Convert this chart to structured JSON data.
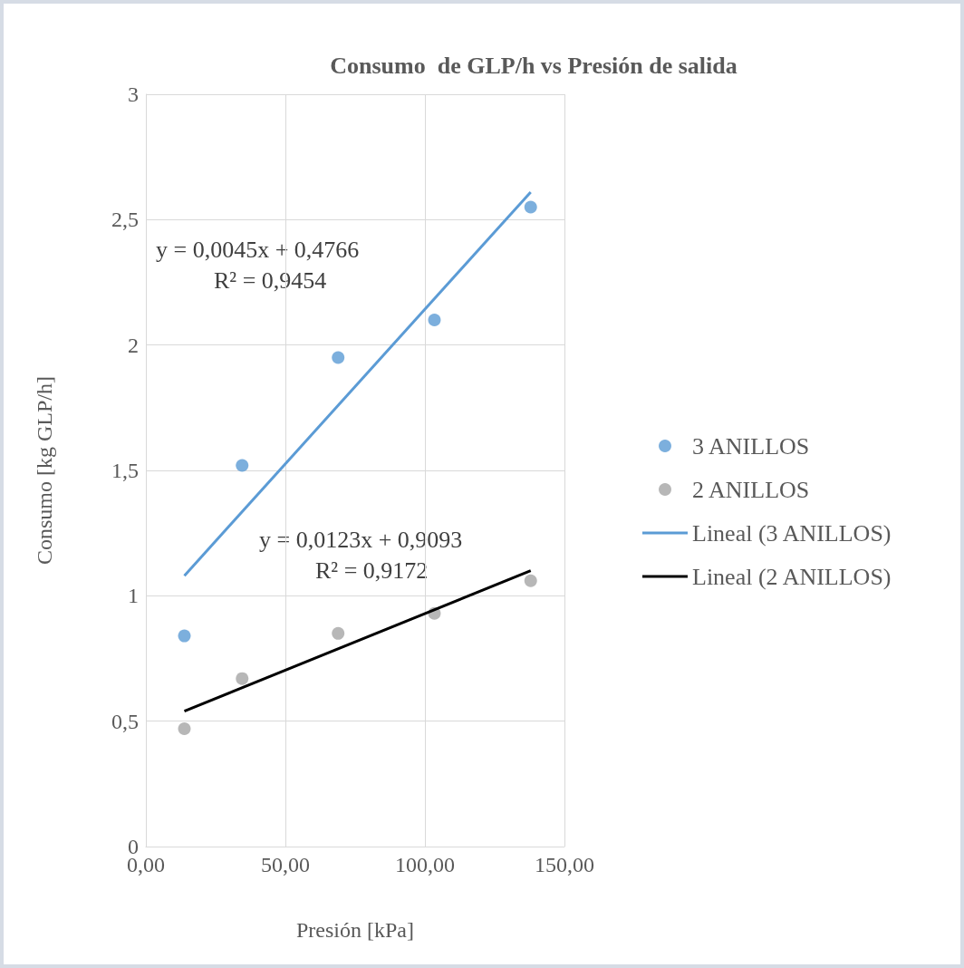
{
  "chart_data": {
    "type": "scatter",
    "title": "Consumo  de GLP/h vs Presión de salida",
    "xlabel": "Presión [kPa]",
    "ylabel": "Consumo [kg GLP/h]",
    "xlim": [
      0,
      150
    ],
    "xticks": [
      {
        "value": 0,
        "label": "0,00"
      },
      {
        "value": 50,
        "label": "50,00"
      },
      {
        "value": 100,
        "label": "100,00"
      },
      {
        "value": 150,
        "label": "150,00"
      }
    ],
    "ylim": [
      0,
      3
    ],
    "yticks": [
      0,
      {
        "value": 0.5,
        "label": "0,5"
      },
      1,
      {
        "value": 1.5,
        "label": "1,5"
      },
      2,
      {
        "value": 2.5,
        "label": "2,5"
      },
      3
    ],
    "grid": true,
    "legend": "right",
    "series": [
      {
        "name": "3 ANILLOS",
        "marker": "circle",
        "color": "#5b9bd5",
        "x": [
          13.8,
          34.5,
          68.9,
          103.4,
          137.9
        ],
        "values": [
          0.84,
          1.52,
          1.95,
          2.1,
          2.55
        ]
      },
      {
        "name": "2 ANILLOS",
        "marker": "circle",
        "color": "#a5a5a5",
        "x": [
          13.8,
          34.5,
          68.9,
          103.4,
          137.9
        ],
        "values": [
          0.47,
          0.67,
          0.85,
          0.93,
          1.06
        ]
      },
      {
        "name": "Lineal (3 ANILLOS)",
        "type": "line",
        "marker": "none",
        "line_style": "solid",
        "color": "#5b9bd5",
        "x": [
          13.8,
          137.9
        ],
        "values": [
          1.08,
          2.61
        ]
      },
      {
        "name": "Lineal (2 ANILLOS)",
        "type": "line",
        "marker": "none",
        "line_style": "solid",
        "color": "#000000",
        "x": [
          13.8,
          137.9
        ],
        "values": [
          0.54,
          1.1
        ]
      }
    ],
    "annotations": [
      "y = 0,0045x + 0,4766",
      "R² = 0,9454",
      "y = 0,0123x + 0,9093",
      "R² = 0,9172"
    ]
  }
}
